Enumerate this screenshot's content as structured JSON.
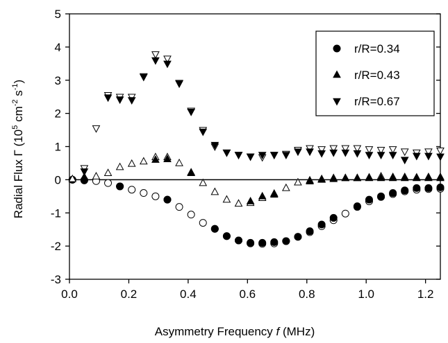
{
  "chart_data": {
    "type": "scatter",
    "title": "",
    "xlabel": {
      "pre": "Asymmetry Frequency ",
      "italic": "f",
      "post": " (MHz)"
    },
    "ylabel": {
      "pre": "Radial Flux Γ (10",
      "sup1": "5",
      "mid": " cm",
      "sup2": "-2",
      "mid2": " s",
      "sup3": "-1",
      "post": ")"
    },
    "xlim": [
      0,
      1.25
    ],
    "ylim": [
      -3,
      5
    ],
    "xticks": [
      "0.0",
      "0.2",
      "0.4",
      "0.6",
      "0.8",
      "1.0",
      "1.2"
    ],
    "xtick_values": [
      0,
      0.2,
      0.4,
      0.6,
      0.8,
      1.0,
      1.2
    ],
    "yticks": [
      "-3",
      "-2",
      "-1",
      "0",
      "1",
      "2",
      "3",
      "4",
      "5"
    ],
    "ytick_values": [
      -3,
      -2,
      -1,
      0,
      1,
      2,
      3,
      4,
      5
    ],
    "zero_line": true,
    "legend_position": "top-right",
    "series": [
      {
        "name": "r/R=0.34",
        "marker": "circle",
        "filled": [
          [
            0.01,
            0
          ],
          [
            0.05,
            -0.02
          ],
          [
            0.17,
            -0.2
          ],
          [
            0.33,
            -0.6
          ],
          [
            0.49,
            -1.48
          ],
          [
            0.53,
            -1.7
          ],
          [
            0.57,
            -1.83
          ],
          [
            0.61,
            -1.9
          ],
          [
            0.65,
            -1.9
          ],
          [
            0.69,
            -1.88
          ],
          [
            0.73,
            -1.85
          ],
          [
            0.77,
            -1.72
          ],
          [
            0.81,
            -1.55
          ],
          [
            0.85,
            -1.35
          ],
          [
            0.89,
            -1.15
          ],
          [
            0.97,
            -0.8
          ],
          [
            1.01,
            -0.6
          ],
          [
            1.05,
            -0.5
          ],
          [
            1.09,
            -0.4
          ],
          [
            1.13,
            -0.32
          ],
          [
            1.17,
            -0.25
          ],
          [
            1.21,
            -0.25
          ],
          [
            1.25,
            -0.23
          ]
        ],
        "open": [
          [
            0.01,
            0
          ],
          [
            0.05,
            -0.01
          ],
          [
            0.09,
            -0.04
          ],
          [
            0.13,
            -0.1
          ],
          [
            0.17,
            -0.2
          ],
          [
            0.21,
            -0.3
          ],
          [
            0.25,
            -0.4
          ],
          [
            0.29,
            -0.5
          ],
          [
            0.33,
            -0.6
          ],
          [
            0.37,
            -0.82
          ],
          [
            0.41,
            -1.05
          ],
          [
            0.45,
            -1.3
          ],
          [
            0.49,
            -1.48
          ],
          [
            0.53,
            -1.7
          ],
          [
            0.57,
            -1.83
          ],
          [
            0.61,
            -1.92
          ],
          [
            0.65,
            -1.93
          ],
          [
            0.69,
            -1.92
          ],
          [
            0.73,
            -1.85
          ],
          [
            0.77,
            -1.72
          ],
          [
            0.81,
            -1.58
          ],
          [
            0.85,
            -1.4
          ],
          [
            0.89,
            -1.22
          ],
          [
            0.93,
            -1.02
          ],
          [
            0.97,
            -0.82
          ],
          [
            1.01,
            -0.65
          ],
          [
            1.05,
            -0.52
          ],
          [
            1.09,
            -0.43
          ],
          [
            1.13,
            -0.35
          ],
          [
            1.17,
            -0.3
          ],
          [
            1.21,
            -0.28
          ],
          [
            1.25,
            -0.27
          ]
        ]
      },
      {
        "name": "r/R=0.43",
        "marker": "triangle-up",
        "filled": [
          [
            0.05,
            0.08
          ],
          [
            0.29,
            0.6
          ],
          [
            0.33,
            0.62
          ],
          [
            0.41,
            0.2
          ],
          [
            0.61,
            -0.65
          ],
          [
            0.65,
            -0.5
          ],
          [
            0.69,
            -0.45
          ],
          [
            0.81,
            -0.05
          ],
          [
            0.85,
            0
          ],
          [
            0.89,
            0.02
          ],
          [
            0.93,
            0.05
          ],
          [
            0.97,
            0.05
          ],
          [
            1.01,
            0.05
          ],
          [
            1.05,
            0.05
          ],
          [
            1.09,
            0.05
          ],
          [
            1.13,
            0.05
          ],
          [
            1.17,
            0.05
          ],
          [
            1.21,
            0.05
          ],
          [
            1.25,
            0.05
          ]
        ],
        "open": [
          [
            0.01,
            0.02
          ],
          [
            0.05,
            0.08
          ],
          [
            0.09,
            0.1
          ],
          [
            0.13,
            0.2
          ],
          [
            0.17,
            0.38
          ],
          [
            0.21,
            0.48
          ],
          [
            0.25,
            0.55
          ],
          [
            0.29,
            0.68
          ],
          [
            0.33,
            0.68
          ],
          [
            0.37,
            0.5
          ],
          [
            0.41,
            0.22
          ],
          [
            0.45,
            -0.1
          ],
          [
            0.49,
            -0.37
          ],
          [
            0.53,
            -0.6
          ],
          [
            0.57,
            -0.72
          ],
          [
            0.61,
            -0.7
          ],
          [
            0.65,
            -0.55
          ],
          [
            0.69,
            -0.42
          ],
          [
            0.73,
            -0.25
          ],
          [
            0.77,
            -0.08
          ],
          [
            0.81,
            -0.02
          ],
          [
            0.85,
            0.02
          ],
          [
            0.89,
            0.05
          ],
          [
            0.93,
            0.05
          ],
          [
            0.97,
            0.05
          ],
          [
            1.01,
            0.07
          ],
          [
            1.05,
            0.1
          ],
          [
            1.09,
            0.08
          ],
          [
            1.13,
            0.08
          ],
          [
            1.17,
            0.07
          ],
          [
            1.21,
            0.08
          ],
          [
            1.25,
            0.08
          ]
        ]
      },
      {
        "name": "r/R=0.67",
        "marker": "triangle-down",
        "filled": [
          [
            0.05,
            0.25
          ],
          [
            0.13,
            2.48
          ],
          [
            0.17,
            2.42
          ],
          [
            0.21,
            2.4
          ],
          [
            0.25,
            3.1
          ],
          [
            0.29,
            3.6
          ],
          [
            0.33,
            3.5
          ],
          [
            0.37,
            2.9
          ],
          [
            0.41,
            2.05
          ],
          [
            0.45,
            1.45
          ],
          [
            0.49,
            1.05
          ],
          [
            0.53,
            0.82
          ],
          [
            0.57,
            0.75
          ],
          [
            0.61,
            0.7
          ],
          [
            0.65,
            0.75
          ],
          [
            0.69,
            0.75
          ],
          [
            0.73,
            0.75
          ],
          [
            0.77,
            0.85
          ],
          [
            0.81,
            0.85
          ],
          [
            0.85,
            0.8
          ],
          [
            0.89,
            0.82
          ],
          [
            0.93,
            0.82
          ],
          [
            0.97,
            0.8
          ],
          [
            1.01,
            0.75
          ],
          [
            1.05,
            0.75
          ],
          [
            1.09,
            0.75
          ],
          [
            1.13,
            0.6
          ],
          [
            1.17,
            0.72
          ],
          [
            1.21,
            0.72
          ],
          [
            1.25,
            0.7
          ]
        ],
        "open": [
          [
            0.05,
            0.35
          ],
          [
            0.09,
            1.55
          ],
          [
            0.13,
            2.55
          ],
          [
            0.17,
            2.5
          ],
          [
            0.21,
            2.5
          ],
          [
            0.25,
            3.12
          ],
          [
            0.29,
            3.78
          ],
          [
            0.33,
            3.65
          ],
          [
            0.37,
            2.92
          ],
          [
            0.41,
            2.08
          ],
          [
            0.45,
            1.5
          ],
          [
            0.49,
            1
          ],
          [
            0.53,
            0.82
          ],
          [
            0.57,
            0.75
          ],
          [
            0.61,
            0.7
          ],
          [
            0.65,
            0.68
          ],
          [
            0.69,
            0.75
          ],
          [
            0.73,
            0.78
          ],
          [
            0.77,
            0.9
          ],
          [
            0.81,
            0.95
          ],
          [
            0.85,
            0.92
          ],
          [
            0.89,
            0.95
          ],
          [
            0.93,
            0.95
          ],
          [
            0.97,
            0.95
          ],
          [
            1.01,
            0.92
          ],
          [
            1.05,
            0.9
          ],
          [
            1.09,
            0.92
          ],
          [
            1.13,
            0.85
          ],
          [
            1.17,
            0.82
          ],
          [
            1.21,
            0.85
          ],
          [
            1.25,
            0.88
          ]
        ]
      }
    ]
  }
}
